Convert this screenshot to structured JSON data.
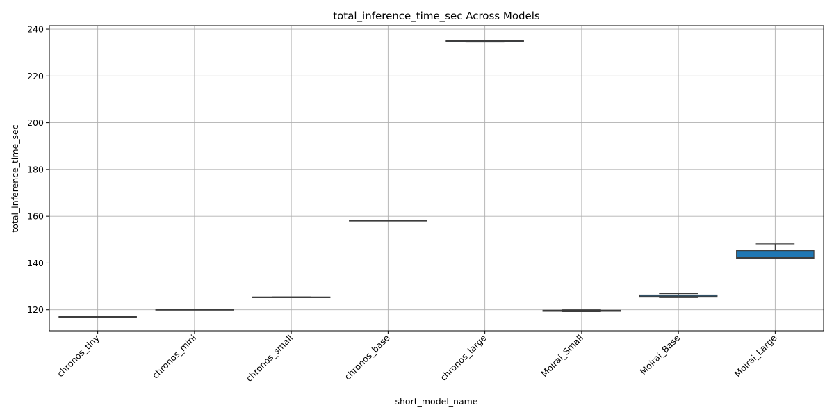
{
  "chart_data": {
    "type": "box",
    "title": "total_inference_time_sec Across Models",
    "xlabel": "short_model_name",
    "ylabel": "total_inference_time_sec",
    "ylim": [
      111,
      241.5
    ],
    "yticks": [
      120,
      140,
      160,
      180,
      200,
      220,
      240
    ],
    "grid": true,
    "legend": "none",
    "box_color": "#1f77b4",
    "edge_color": "#3d3d3d",
    "grid_color": "#b0b0b0",
    "categories": [
      "chronos_tiny",
      "chronos_mini",
      "chronos_small",
      "chronos_base",
      "chronos_large",
      "Moirai_Small",
      "Moirai_Base",
      "Moirai_Large"
    ],
    "boxes": [
      {
        "min": 116.7,
        "q1": 116.8,
        "median": 117.0,
        "q3": 117.1,
        "max": 117.2
      },
      {
        "min": 120.0,
        "q1": 120.05,
        "median": 120.1,
        "q3": 120.15,
        "max": 120.2
      },
      {
        "min": 125.3,
        "q1": 125.35,
        "median": 125.4,
        "q3": 125.45,
        "max": 125.5
      },
      {
        "min": 158.0,
        "q1": 158.05,
        "median": 158.15,
        "q3": 158.25,
        "max": 158.4
      },
      {
        "min": 234.5,
        "q1": 234.6,
        "median": 234.9,
        "q3": 235.2,
        "max": 235.3
      },
      {
        "min": 119.2,
        "q1": 119.35,
        "median": 119.6,
        "q3": 119.8,
        "max": 120.0
      },
      {
        "min": 125.2,
        "q1": 125.4,
        "median": 125.8,
        "q3": 126.3,
        "max": 126.9
      },
      {
        "min": 141.8,
        "q1": 142.0,
        "median": 142.3,
        "q3": 145.3,
        "max": 148.2
      }
    ]
  }
}
